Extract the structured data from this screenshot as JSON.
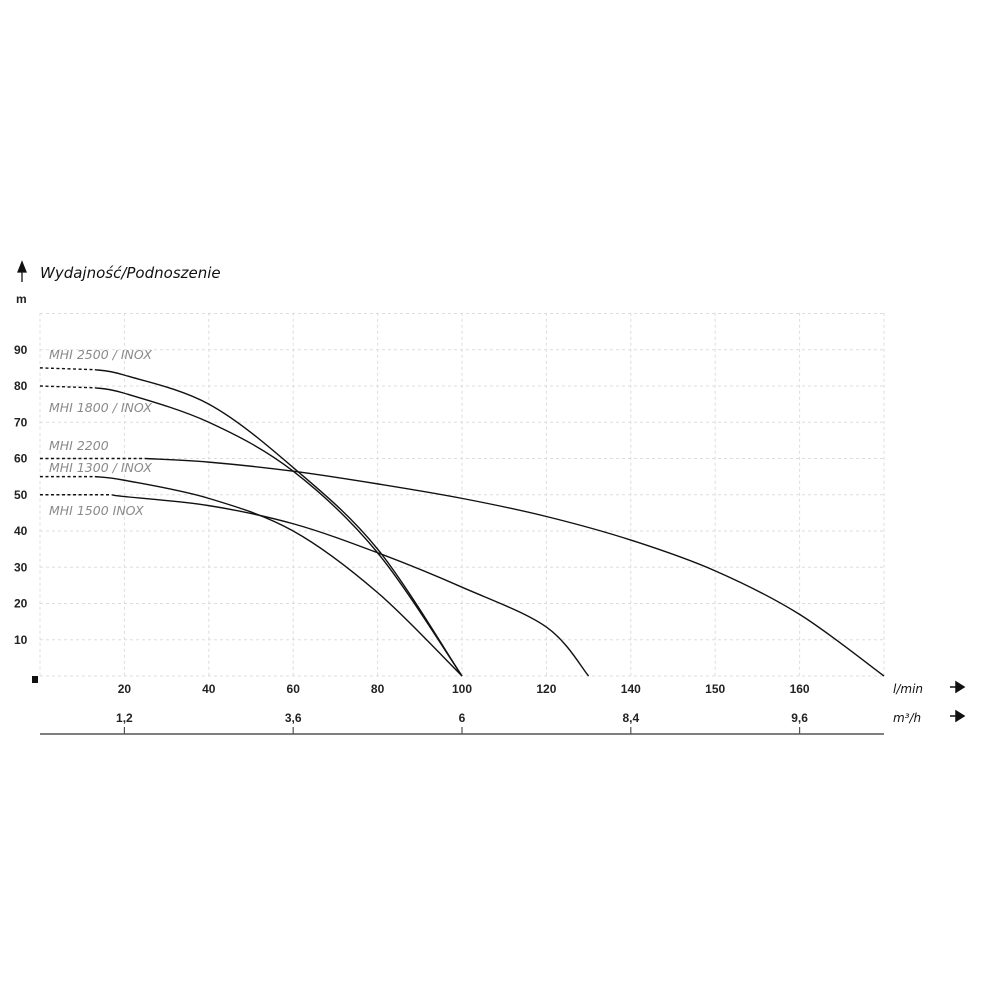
{
  "chart_data": {
    "type": "line",
    "title": "Wydajność/Podnoszenie",
    "ylabel": "m",
    "xlabel": "l/min",
    "x2label": "m³/h",
    "ylim": [
      0,
      90
    ],
    "y_ticks": [
      10,
      20,
      30,
      40,
      50,
      60,
      70,
      80,
      90
    ],
    "x_ticks": [
      20,
      40,
      60,
      80,
      100,
      120,
      140,
      150,
      160
    ],
    "x_tick_scale": [
      0,
      20,
      40,
      60,
      80,
      100,
      120,
      140,
      150,
      160,
      170
    ],
    "x2_ticks": [
      {
        "label": "1,2",
        "at": 20
      },
      {
        "label": "3,6",
        "at": 60
      },
      {
        "label": "6",
        "at": 100
      },
      {
        "label": "8,4",
        "at": 140
      },
      {
        "label": "9,6",
        "at": 160
      }
    ],
    "grid": true,
    "series": [
      {
        "name": "MHI 2500 / INOX",
        "dashed_until": 13,
        "points": [
          [
            0,
            85
          ],
          [
            13,
            84.5
          ],
          [
            20,
            83
          ],
          [
            40,
            75
          ],
          [
            60,
            57.5
          ],
          [
            80,
            35
          ],
          [
            100,
            0
          ]
        ]
      },
      {
        "name": "MHI 1800 / INOX",
        "dashed_until": 13,
        "points": [
          [
            0,
            80
          ],
          [
            13,
            79.5
          ],
          [
            20,
            78
          ],
          [
            40,
            70
          ],
          [
            60,
            56.5
          ],
          [
            80,
            34
          ],
          [
            100,
            0
          ]
        ]
      },
      {
        "name": "MHI 2200",
        "dashed_until": 25,
        "points": [
          [
            0,
            60
          ],
          [
            25,
            60
          ],
          [
            40,
            59
          ],
          [
            60,
            56.5
          ],
          [
            80,
            53
          ],
          [
            100,
            49
          ],
          [
            120,
            44
          ],
          [
            140,
            37.5
          ],
          [
            150,
            29
          ],
          [
            160,
            17
          ],
          [
            170,
            0
          ]
        ]
      },
      {
        "name": "MHI 1300 / INOX",
        "dashed_until": 13,
        "points": [
          [
            0,
            55
          ],
          [
            13,
            55
          ],
          [
            20,
            54
          ],
          [
            40,
            49
          ],
          [
            60,
            40
          ],
          [
            80,
            23
          ],
          [
            100,
            0
          ]
        ]
      },
      {
        "name": "MHI 1500 INOX",
        "dashed_until": 17,
        "points": [
          [
            0,
            50
          ],
          [
            17,
            50
          ],
          [
            20,
            49.5
          ],
          [
            40,
            47
          ],
          [
            60,
            42
          ],
          [
            80,
            34
          ],
          [
            100,
            24.5
          ],
          [
            120,
            13.5
          ],
          [
            130,
            0
          ]
        ]
      }
    ]
  }
}
